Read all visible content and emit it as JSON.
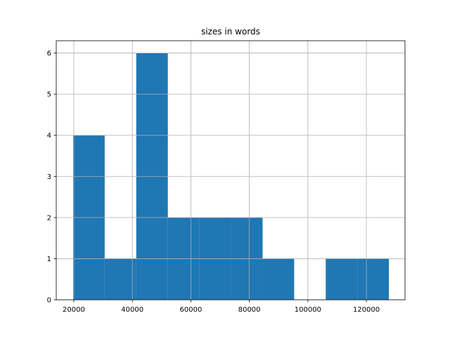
{
  "chart_data": {
    "type": "histogram",
    "title": "sizes in words",
    "bins": [
      19760,
      30554,
      41348,
      52142,
      62936,
      73730,
      84524,
      95318,
      106112,
      116906,
      127700
    ],
    "counts": [
      4,
      1,
      6,
      2,
      2,
      2,
      1,
      0,
      1,
      1
    ],
    "color": "#1f77b4",
    "xlim": [
      14000,
      133200
    ],
    "xticks": [
      20000,
      40000,
      60000,
      80000,
      100000,
      120000
    ],
    "ylim": [
      0,
      6.3
    ],
    "yticks": [
      0,
      1,
      2,
      3,
      4,
      5,
      6
    ],
    "grid": true
  }
}
